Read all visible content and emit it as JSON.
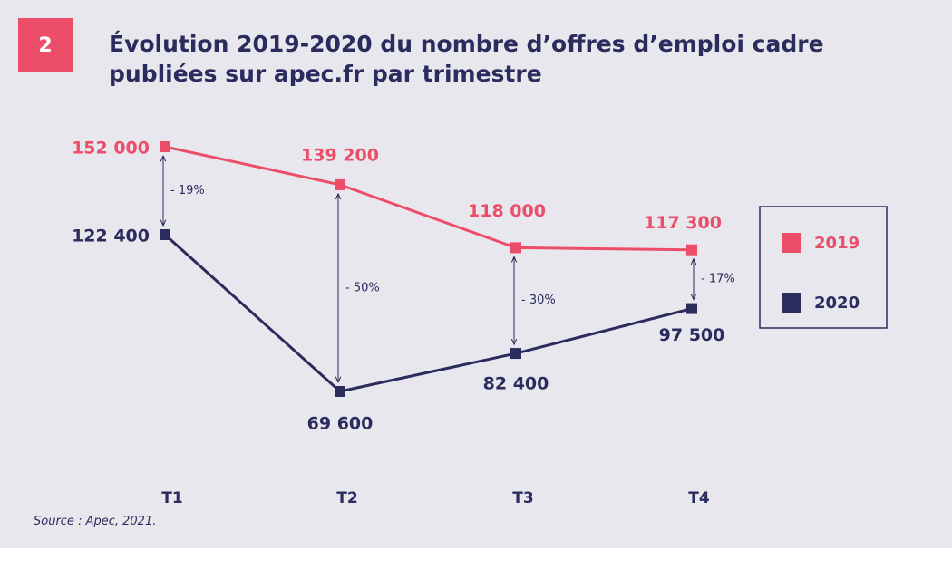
{
  "badge": "2",
  "source": "Source : Apec, 2021.",
  "chart_data": {
    "type": "line",
    "title": "Évolution 2019-2020 du nombre d’offres d’emploi cadre publiées sur apec.fr par trimestre",
    "categories": [
      "T1",
      "T2",
      "T3",
      "T4"
    ],
    "series": [
      {
        "name": "2019",
        "color": "#ec4d68",
        "values": [
          152000,
          139200,
          118000,
          117300
        ],
        "value_labels": [
          "152 000",
          "139 200",
          "118 000",
          "117 300"
        ]
      },
      {
        "name": "2020",
        "color": "#2b2c5e",
        "values": [
          122400,
          69600,
          82400,
          97500
        ],
        "value_labels": [
          "122 400",
          "69 600",
          "82 400",
          "97 500"
        ]
      }
    ],
    "annotations": [
      "- 19%",
      "- 50%",
      "- 30%",
      "- 17%"
    ]
  }
}
